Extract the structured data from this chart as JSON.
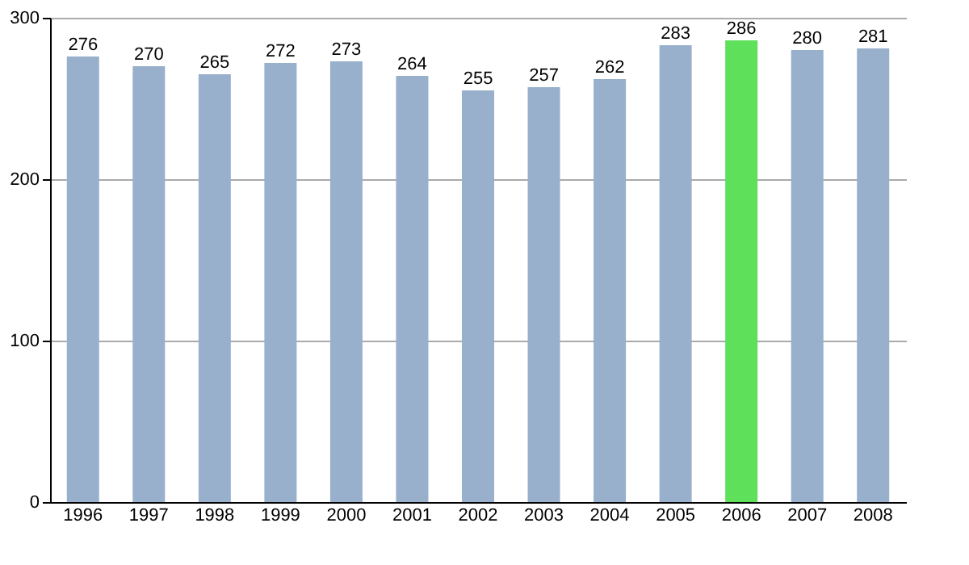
{
  "chart_data": {
    "type": "bar",
    "categories": [
      "1996",
      "1997",
      "1998",
      "1999",
      "2000",
      "2001",
      "2002",
      "2003",
      "2004",
      "2005",
      "2006",
      "2007",
      "2008"
    ],
    "values": [
      276,
      270,
      265,
      272,
      273,
      264,
      255,
      257,
      262,
      283,
      286,
      280,
      281
    ],
    "colors": [
      "#98b0cc",
      "#98b0cc",
      "#98b0cc",
      "#98b0cc",
      "#98b0cc",
      "#98b0cc",
      "#98b0cc",
      "#98b0cc",
      "#98b0cc",
      "#98b0cc",
      "#5ee05a",
      "#98b0cc",
      "#98b0cc"
    ],
    "ylim": [
      0,
      300
    ],
    "yticks": [
      0,
      100,
      200,
      300
    ],
    "grid": "y",
    "data_labels": true
  }
}
